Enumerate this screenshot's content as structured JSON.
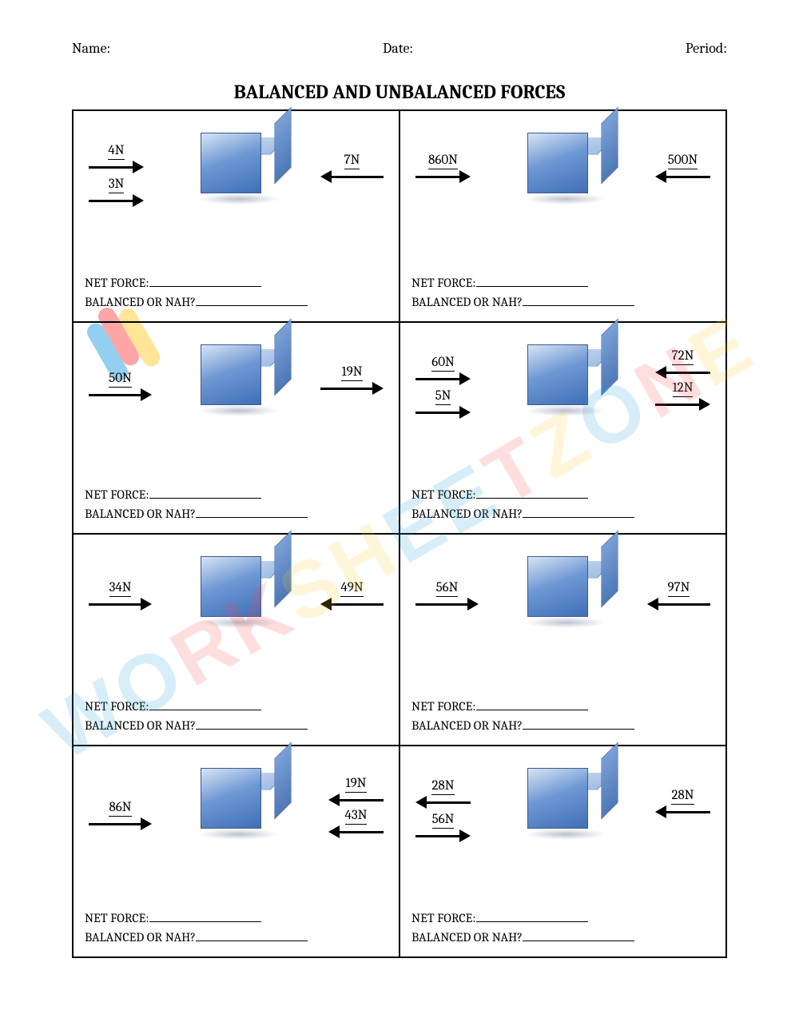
{
  "header": {
    "name": "Name:",
    "date": "Date:",
    "period": "Period:"
  },
  "title": "BALANCED AND UNBALANCED FORCES",
  "answer_labels": {
    "net": "NET FORCE:",
    "balanced": "BALANCED OR NAH?"
  },
  "cube_colors": {
    "front_light": "#d8e4f4",
    "front_mid": "#6e98d4",
    "front_dark": "#3f6fb8",
    "side_light": "#7aa0d6",
    "side_dark": "#4e78b8",
    "top_light": "#c9d8ef",
    "top_dark": "#9fbde4",
    "border": "#3b5a8c"
  },
  "watermark": {
    "text": "WORKSHEETZONE",
    "colors": [
      "#2aa3e0",
      "#2aa3e0",
      "#ff4d4d",
      "#ff4d4d",
      "#ffcc33",
      "#ffcc33",
      "#2aa3e0",
      "#2aa3e0",
      "#ff4d4d",
      "#ffcc33",
      "#2aa3e0",
      "#ff4d4d",
      "#ffcc33"
    ],
    "logo_colors": [
      "#2aa3e0",
      "#ff4d4d",
      "#ffcc33"
    ]
  },
  "cells": [
    {
      "forces": [
        {
          "label": "4N",
          "dir": "right",
          "side": "left",
          "y": 28,
          "len": 55
        },
        {
          "label": "3N",
          "dir": "right",
          "side": "left",
          "y": 70,
          "len": 55
        },
        {
          "label": "7N",
          "dir": "left",
          "side": "right",
          "y": 40,
          "len": 65
        }
      ]
    },
    {
      "forces": [
        {
          "label": "860N",
          "dir": "right",
          "side": "left",
          "y": 40,
          "len": 55
        },
        {
          "label": "500N",
          "dir": "left",
          "side": "right",
          "y": 40,
          "len": 55
        }
      ]
    },
    {
      "forces": [
        {
          "label": "50N",
          "dir": "right",
          "side": "left",
          "y": 48,
          "len": 65
        },
        {
          "label": "19N",
          "dir": "right",
          "side": "right",
          "y": 40,
          "len": 65
        }
      ]
    },
    {
      "forces": [
        {
          "label": "60N",
          "dir": "right",
          "side": "left",
          "y": 28,
          "len": 55
        },
        {
          "label": "5N",
          "dir": "right",
          "side": "left",
          "y": 70,
          "len": 55
        },
        {
          "label": "72N",
          "dir": "left",
          "side": "right",
          "y": 20,
          "len": 55
        },
        {
          "label": "12N",
          "dir": "right",
          "side": "right",
          "y": 60,
          "len": 55
        }
      ]
    },
    {
      "forces": [
        {
          "label": "34N",
          "dir": "right",
          "side": "left",
          "y": 45,
          "len": 65
        },
        {
          "label": "49N",
          "dir": "left",
          "side": "right",
          "y": 45,
          "len": 65
        }
      ]
    },
    {
      "forces": [
        {
          "label": "56N",
          "dir": "right",
          "side": "left",
          "y": 45,
          "len": 65
        },
        {
          "label": "97N",
          "dir": "left",
          "side": "right",
          "y": 45,
          "len": 65
        }
      ]
    },
    {
      "forces": [
        {
          "label": "86N",
          "dir": "right",
          "side": "left",
          "y": 55,
          "len": 65
        },
        {
          "label": "19N",
          "dir": "left",
          "side": "right",
          "y": 25,
          "len": 55
        },
        {
          "label": "43N",
          "dir": "left",
          "side": "right",
          "y": 65,
          "len": 55
        }
      ]
    },
    {
      "forces": [
        {
          "label": "28N",
          "dir": "left",
          "side": "left",
          "y": 28,
          "len": 55
        },
        {
          "label": "56N",
          "dir": "right",
          "side": "left",
          "y": 70,
          "len": 55
        },
        {
          "label": "28N",
          "dir": "left",
          "side": "right",
          "y": 40,
          "len": 55
        }
      ]
    }
  ]
}
